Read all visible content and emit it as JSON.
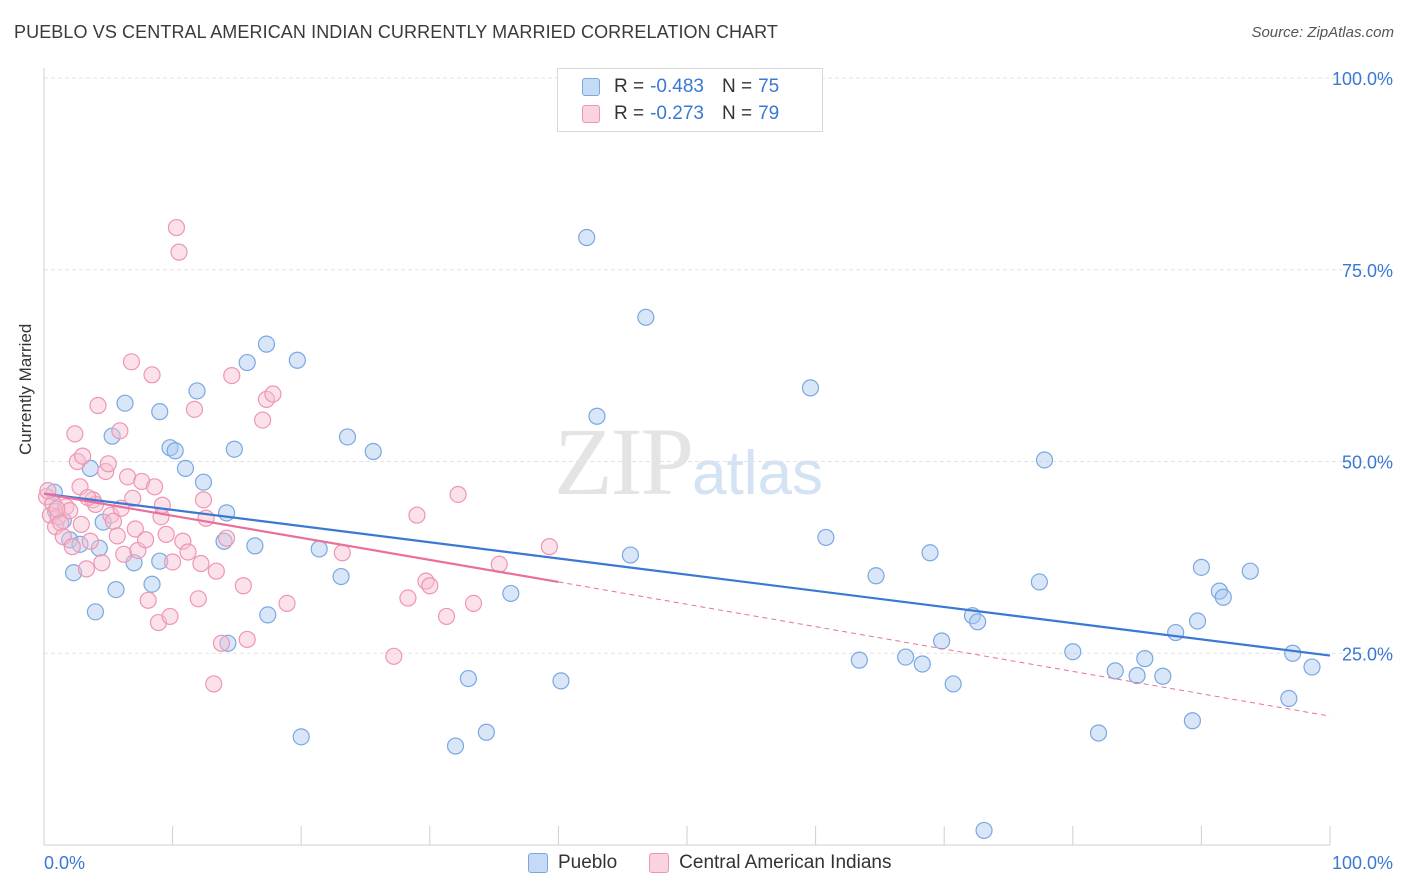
{
  "title": "PUEBLO VS CENTRAL AMERICAN INDIAN CURRENTLY MARRIED CORRELATION CHART",
  "source": "Source: ZipAtlas.com",
  "watermark": {
    "zip": "ZIP",
    "atlas": "atlas"
  },
  "legend": {
    "rows": [
      {
        "r_label": "R =",
        "r_value": "-0.483",
        "n_label": "N =",
        "n_value": "75",
        "color": "#a8c8f0",
        "border": "#7aa8e0"
      },
      {
        "r_label": "R =",
        "r_value": "-0.273",
        "n_label": "N =",
        "n_value": "79",
        "color": "#f6bfd1",
        "border": "#ee95b4"
      }
    ]
  },
  "bottom_legend": [
    {
      "name": "Pueblo",
      "color": "#a8c8f0",
      "border": "#7aa8e0"
    },
    {
      "name": "Central American Indians",
      "color": "#f6bfd1",
      "border": "#ee95b4"
    }
  ],
  "colors": {
    "blue": "#3a78d4",
    "pink": "#e8709a",
    "grid": "#e4e4e4"
  },
  "chart_data": {
    "type": "scatter",
    "title": "PUEBLO VS CENTRAL AMERICAN INDIAN CURRENTLY MARRIED CORRELATION CHART",
    "xlabel": "",
    "ylabel": "Currently Married",
    "xlim": [
      0,
      100
    ],
    "ylim": [
      0,
      100
    ],
    "x_tick_labels": [
      "0.0%",
      "100.0%"
    ],
    "y_ticks": [
      25,
      50,
      75,
      100
    ],
    "y_tick_labels": [
      "25.0%",
      "50.0%",
      "75.0%",
      "100.0%"
    ],
    "grid": true,
    "series": [
      {
        "name": "Pueblo",
        "color": "#7aa8e0",
        "fill": "#a8c8f0",
        "trend": {
          "x": [
            0,
            100
          ],
          "y": [
            45.8,
            24.7
          ],
          "dashed_to": null
        },
        "points": [
          [
            0.8,
            46.0
          ],
          [
            0.9,
            43.5
          ],
          [
            1.5,
            42.3
          ],
          [
            2.0,
            39.8
          ],
          [
            2.3,
            35.5
          ],
          [
            2.8,
            39.2
          ],
          [
            3.6,
            49.1
          ],
          [
            4.0,
            30.4
          ],
          [
            4.3,
            38.7
          ],
          [
            4.6,
            42.1
          ],
          [
            5.3,
            53.3
          ],
          [
            5.6,
            33.3
          ],
          [
            6.3,
            57.6
          ],
          [
            7.0,
            36.8
          ],
          [
            8.4,
            34.0
          ],
          [
            9.0,
            37.0
          ],
          [
            9.0,
            56.5
          ],
          [
            9.8,
            51.8
          ],
          [
            10.2,
            51.4
          ],
          [
            11.0,
            49.1
          ],
          [
            11.9,
            59.2
          ],
          [
            12.4,
            47.3
          ],
          [
            14.0,
            39.6
          ],
          [
            14.2,
            43.3
          ],
          [
            14.3,
            26.3
          ],
          [
            14.8,
            51.6
          ],
          [
            15.8,
            62.9
          ],
          [
            16.4,
            39.0
          ],
          [
            17.3,
            65.3
          ],
          [
            17.4,
            30.0
          ],
          [
            19.7,
            63.2
          ],
          [
            20.0,
            14.1
          ],
          [
            21.4,
            38.6
          ],
          [
            23.1,
            35.0
          ],
          [
            23.6,
            53.2
          ],
          [
            25.6,
            51.3
          ],
          [
            32.0,
            12.9
          ],
          [
            33.0,
            21.7
          ],
          [
            34.4,
            14.7
          ],
          [
            36.3,
            32.8
          ],
          [
            40.2,
            21.4
          ],
          [
            42.2,
            79.2
          ],
          [
            43.0,
            55.9
          ],
          [
            45.6,
            37.8
          ],
          [
            46.8,
            68.8
          ],
          [
            59.6,
            59.6
          ],
          [
            60.8,
            40.1
          ],
          [
            63.4,
            24.1
          ],
          [
            64.7,
            35.1
          ],
          [
            67.0,
            24.5
          ],
          [
            68.3,
            23.6
          ],
          [
            68.9,
            38.1
          ],
          [
            69.8,
            26.6
          ],
          [
            70.7,
            21.0
          ],
          [
            72.2,
            29.9
          ],
          [
            72.6,
            29.1
          ],
          [
            73.1,
            1.9
          ],
          [
            77.4,
            34.3
          ],
          [
            77.8,
            50.2
          ],
          [
            80.0,
            25.2
          ],
          [
            82.0,
            14.6
          ],
          [
            83.3,
            22.7
          ],
          [
            85.0,
            22.1
          ],
          [
            85.6,
            24.3
          ],
          [
            87.0,
            22.0
          ],
          [
            88.0,
            27.7
          ],
          [
            89.3,
            16.2
          ],
          [
            89.7,
            29.2
          ],
          [
            90.0,
            36.2
          ],
          [
            91.4,
            33.1
          ],
          [
            91.7,
            32.3
          ],
          [
            93.8,
            35.7
          ],
          [
            96.8,
            19.1
          ],
          [
            97.1,
            25.0
          ],
          [
            98.6,
            23.2
          ]
        ]
      },
      {
        "name": "Central American Indians",
        "color": "#ee95b4",
        "fill": "#f6bfd1",
        "trend": {
          "x": [
            0,
            40
          ],
          "y": [
            45.8,
            34.3
          ],
          "dashed_to": [
            100,
            16.8
          ]
        },
        "points": [
          [
            0.2,
            45.4
          ],
          [
            0.5,
            43.0
          ],
          [
            0.7,
            44.5
          ],
          [
            0.9,
            41.5
          ],
          [
            1.1,
            42.8
          ],
          [
            1.3,
            42.0
          ],
          [
            1.5,
            40.2
          ],
          [
            1.7,
            44.1
          ],
          [
            2.0,
            43.6
          ],
          [
            2.2,
            38.9
          ],
          [
            2.4,
            53.6
          ],
          [
            2.6,
            50.0
          ],
          [
            2.8,
            46.7
          ],
          [
            2.9,
            41.8
          ],
          [
            3.0,
            50.7
          ],
          [
            3.3,
            36.0
          ],
          [
            3.6,
            39.6
          ],
          [
            3.8,
            45.0
          ],
          [
            4.0,
            44.4
          ],
          [
            4.2,
            57.3
          ],
          [
            4.5,
            36.8
          ],
          [
            4.8,
            48.7
          ],
          [
            5.0,
            49.7
          ],
          [
            5.2,
            43.0
          ],
          [
            5.4,
            42.2
          ],
          [
            5.7,
            40.3
          ],
          [
            5.9,
            54.0
          ],
          [
            6.2,
            37.9
          ],
          [
            6.5,
            48.0
          ],
          [
            6.8,
            63.0
          ],
          [
            6.9,
            45.2
          ],
          [
            7.1,
            41.2
          ],
          [
            7.3,
            38.4
          ],
          [
            7.6,
            47.4
          ],
          [
            7.9,
            39.8
          ],
          [
            8.1,
            31.9
          ],
          [
            8.4,
            61.3
          ],
          [
            8.6,
            46.7
          ],
          [
            8.9,
            29.0
          ],
          [
            9.1,
            42.8
          ],
          [
            9.5,
            40.5
          ],
          [
            9.8,
            29.8
          ],
          [
            10.0,
            36.9
          ],
          [
            10.3,
            80.5
          ],
          [
            10.5,
            77.3
          ],
          [
            10.8,
            39.6
          ],
          [
            11.2,
            38.2
          ],
          [
            11.7,
            56.8
          ],
          [
            12.0,
            32.1
          ],
          [
            12.2,
            36.7
          ],
          [
            12.6,
            42.6
          ],
          [
            13.2,
            21.0
          ],
          [
            13.4,
            35.7
          ],
          [
            13.8,
            26.3
          ],
          [
            14.2,
            40.0
          ],
          [
            14.6,
            61.2
          ],
          [
            15.5,
            33.8
          ],
          [
            15.8,
            26.8
          ],
          [
            17.0,
            55.4
          ],
          [
            17.3,
            58.1
          ],
          [
            17.8,
            58.8
          ],
          [
            18.9,
            31.5
          ],
          [
            23.2,
            38.1
          ],
          [
            27.2,
            24.6
          ],
          [
            28.3,
            32.2
          ],
          [
            29.0,
            43.0
          ],
          [
            29.7,
            34.4
          ],
          [
            30.0,
            33.8
          ],
          [
            31.3,
            29.8
          ],
          [
            32.2,
            45.7
          ],
          [
            33.4,
            31.5
          ],
          [
            35.4,
            36.6
          ],
          [
            39.3,
            38.9
          ],
          [
            0.3,
            46.2
          ],
          [
            1.0,
            43.8
          ],
          [
            3.4,
            45.3
          ],
          [
            6.0,
            43.9
          ],
          [
            9.2,
            44.3
          ],
          [
            12.4,
            45.0
          ]
        ]
      }
    ]
  }
}
